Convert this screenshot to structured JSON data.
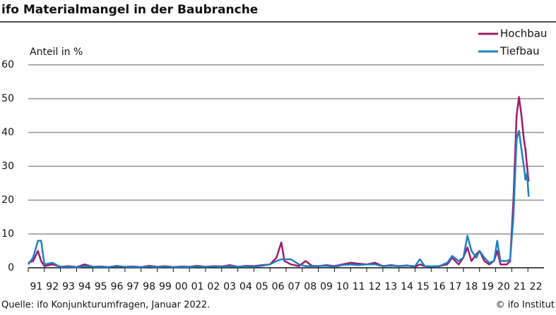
{
  "chart_data": {
    "type": "line",
    "title": "ifo Materialmangel in der Baubranche",
    "y_label": "Anteil in %",
    "source": "Quelle: ifo Konjunkturumfragen, Januar 2022.",
    "copyright": "© ifo Institut",
    "x": [
      1991.0,
      1991.3,
      1991.6,
      1991.8,
      1992.0,
      1992.5,
      1993.0,
      1993.5,
      1994.0,
      1994.5,
      1995.0,
      1995.5,
      1996.0,
      1996.5,
      1997.0,
      1997.5,
      1998.0,
      1998.5,
      1999.0,
      1999.5,
      2000.0,
      2000.5,
      2001.0,
      2001.5,
      2002.0,
      2002.5,
      2003.0,
      2003.5,
      2004.0,
      2004.5,
      2005.0,
      2005.5,
      2006.0,
      2006.4,
      2006.7,
      2006.9,
      2007.3,
      2007.8,
      2008.2,
      2008.6,
      2009.0,
      2009.5,
      2010.0,
      2010.5,
      2011.0,
      2011.5,
      2012.0,
      2012.5,
      2013.0,
      2013.5,
      2014.0,
      2014.5,
      2015.0,
      2015.3,
      2015.6,
      2016.0,
      2016.5,
      2017.0,
      2017.3,
      2017.7,
      2018.0,
      2018.25,
      2018.5,
      2018.8,
      2019.0,
      2019.3,
      2019.6,
      2019.9,
      2020.1,
      2020.3,
      2020.7,
      2020.9,
      2021.1,
      2021.3,
      2021.45,
      2021.6,
      2021.75,
      2021.85,
      2021.95,
      2022.05
    ],
    "xlim": [
      1991,
      2023
    ],
    "xticks": [
      {
        "value": 1991.5,
        "label": "91"
      },
      {
        "value": 1992.5,
        "label": "92"
      },
      {
        "value": 1993.5,
        "label": "93"
      },
      {
        "value": 1994.5,
        "label": "94"
      },
      {
        "value": 1995.5,
        "label": "95"
      },
      {
        "value": 1996.5,
        "label": "96"
      },
      {
        "value": 1997.5,
        "label": "97"
      },
      {
        "value": 1998.5,
        "label": "98"
      },
      {
        "value": 1999.5,
        "label": "99"
      },
      {
        "value": 2000.5,
        "label": "00"
      },
      {
        "value": 2001.5,
        "label": "01"
      },
      {
        "value": 2002.5,
        "label": "02"
      },
      {
        "value": 2003.5,
        "label": "03"
      },
      {
        "value": 2004.5,
        "label": "04"
      },
      {
        "value": 2005.5,
        "label": "05"
      },
      {
        "value": 2006.5,
        "label": "06"
      },
      {
        "value": 2007.5,
        "label": "07"
      },
      {
        "value": 2008.5,
        "label": "08"
      },
      {
        "value": 2009.5,
        "label": "09"
      },
      {
        "value": 2010.5,
        "label": "10"
      },
      {
        "value": 2011.5,
        "label": "11"
      },
      {
        "value": 2012.5,
        "label": "12"
      },
      {
        "value": 2013.5,
        "label": "13"
      },
      {
        "value": 2014.5,
        "label": "14"
      },
      {
        "value": 2015.5,
        "label": "15"
      },
      {
        "value": 2016.5,
        "label": "16"
      },
      {
        "value": 2017.5,
        "label": "17"
      },
      {
        "value": 2018.5,
        "label": "18"
      },
      {
        "value": 2019.5,
        "label": "19"
      },
      {
        "value": 2020.5,
        "label": "20"
      },
      {
        "value": 2021.5,
        "label": "21"
      },
      {
        "value": 2022.5,
        "label": "22"
      }
    ],
    "ylim": [
      0,
      60
    ],
    "yticks": [
      0,
      10,
      20,
      30,
      40,
      50,
      60
    ],
    "grid": true,
    "legend": "top-right",
    "series": [
      {
        "name": "Hochbau",
        "color": "#9c1b6c",
        "values": [
          1.5,
          2,
          5,
          2,
          0.5,
          1,
          0.3,
          0.5,
          0.2,
          1,
          0.3,
          0.4,
          0.2,
          0.5,
          0.3,
          0.4,
          0.2,
          0.6,
          0.3,
          0.5,
          0.2,
          0.4,
          0.3,
          0.6,
          0.3,
          0.5,
          0.4,
          0.8,
          0.3,
          0.6,
          0.5,
          0.8,
          1,
          3,
          7.5,
          2,
          1,
          0.5,
          2,
          0.6,
          0.5,
          0.8,
          0.5,
          1,
          1.5,
          1.2,
          1,
          1.5,
          0.5,
          0.8,
          0.5,
          0.7,
          0.3,
          1,
          0.5,
          0.4,
          0.5,
          1,
          3,
          1,
          3,
          6,
          2,
          4,
          5,
          2,
          1,
          2,
          5,
          1,
          1,
          2,
          20,
          45,
          50.5,
          45,
          38,
          35,
          30,
          25.5
        ]
      },
      {
        "name": "Tiefbau",
        "color": "#1f7fc1",
        "values": [
          1,
          3,
          8,
          8,
          1,
          1.5,
          0.2,
          0.3,
          0.1,
          0.5,
          0.3,
          0.3,
          0.2,
          0.6,
          0.2,
          0.3,
          0.2,
          0.4,
          0.2,
          0.4,
          0.2,
          0.3,
          0.2,
          0.4,
          0.3,
          0.4,
          0.3,
          0.5,
          0.3,
          0.5,
          0.3,
          0.6,
          1,
          2,
          2.5,
          2.5,
          2.5,
          1,
          0.5,
          0.5,
          0.5,
          0.6,
          0.3,
          0.8,
          1,
          0.8,
          1,
          1,
          0.5,
          0.6,
          0.5,
          0.6,
          0.5,
          2.5,
          0.5,
          0.4,
          0.5,
          1.5,
          3.5,
          2,
          3,
          9.5,
          5,
          3,
          5,
          3,
          1.5,
          2,
          8,
          2,
          2,
          2.5,
          15,
          38,
          40.5,
          35,
          30,
          26,
          28,
          21
        ]
      }
    ]
  }
}
